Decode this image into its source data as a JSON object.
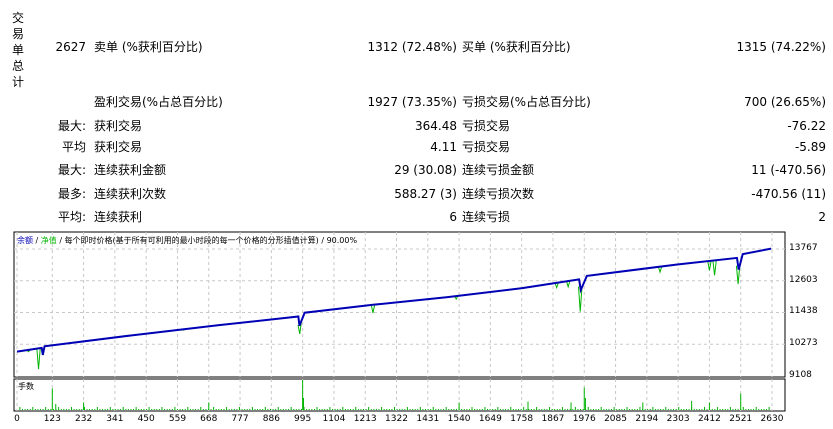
{
  "summary": {
    "vertical_label": "交易单总计",
    "rows": [
      {
        "c1": "2627",
        "c2": "卖单 (%获利百分比)",
        "c3": "1312 (72.48%)",
        "c4": "买单 (%获利百分比)",
        "c5": "1315 (74.22%)"
      },
      {
        "c1": "",
        "c2": "盈利交易(%占总百分比)",
        "c3": "1927 (73.35%)",
        "c4": "亏损交易(%占总百分比)",
        "c5": "700 (26.65%)"
      },
      {
        "c1": "最大:",
        "c2": "获利交易",
        "c3": "364.48",
        "c4": "亏损交易",
        "c5": "-76.22"
      },
      {
        "c1": "平均",
        "c2": "获利交易",
        "c3": "4.11",
        "c4": "亏损交易",
        "c5": "-5.89"
      },
      {
        "c1": "最大:",
        "c2": "连续获利金额",
        "c3": "29 (30.08)",
        "c4": "连续亏损金额",
        "c5": "11 (-470.56)"
      },
      {
        "c1": "最多:",
        "c2": "连续获利次数",
        "c3": "588.27 (3)",
        "c4": "连续亏损次数",
        "c5": "-470.56 (11)"
      },
      {
        "c1": "平均:",
        "c2": "连续获利",
        "c3": "6",
        "c4": "连续亏损",
        "c5": "2"
      }
    ]
  },
  "chart_data": {
    "type": "line",
    "legend": {
      "balance": "余额",
      "sep1": " / ",
      "equity": "净值",
      "rest": " / 每个即时价格(基于所有可利用的最小时段的每一个价格的分形插值计算) / 90.00%"
    },
    "colors": {
      "balance": "#0000b4",
      "equity": "#00b400",
      "volume": "#00b400",
      "grid": "#c8c8c8"
    },
    "ylim": [
      9108,
      13767
    ],
    "yticks": [
      13767,
      12603,
      11438,
      10273,
      9108
    ],
    "xticks": [
      0,
      123,
      232,
      341,
      450,
      559,
      668,
      777,
      886,
      995,
      1104,
      1213,
      1322,
      1431,
      1540,
      1649,
      1758,
      1867,
      1976,
      2085,
      2194,
      2303,
      2412,
      2521,
      2630
    ],
    "xlim": [
      0,
      2630
    ],
    "series": [
      {
        "key": "balance",
        "points": [
          [
            0,
            10003
          ],
          [
            86,
            10140
          ],
          [
            90,
            9880
          ],
          [
            96,
            10200
          ],
          [
            400,
            10600
          ],
          [
            700,
            10970
          ],
          [
            980,
            11290
          ],
          [
            984,
            10950
          ],
          [
            1002,
            11430
          ],
          [
            1240,
            11720
          ],
          [
            1500,
            12000
          ],
          [
            1760,
            12330
          ],
          [
            1958,
            12650
          ],
          [
            1964,
            12260
          ],
          [
            1985,
            12780
          ],
          [
            2300,
            13200
          ],
          [
            2508,
            13440
          ],
          [
            2514,
            13010
          ],
          [
            2528,
            13580
          ],
          [
            2627,
            13780
          ]
        ]
      },
      {
        "key": "equity_dips",
        "points": [
          [
            40,
            10000
          ],
          [
            75,
            9360
          ],
          [
            110,
            10230
          ],
          [
            560,
            10800
          ],
          [
            580,
            10790
          ],
          [
            985,
            10650
          ],
          [
            1240,
            11420
          ],
          [
            1530,
            11930
          ],
          [
            1880,
            12350
          ],
          [
            1920,
            12380
          ],
          [
            1962,
            11470
          ],
          [
            2240,
            12920
          ],
          [
            2412,
            12980
          ],
          [
            2430,
            12800
          ],
          [
            2512,
            12480
          ]
        ]
      }
    ],
    "volume": {
      "label": "手数",
      "bars": [
        [
          123,
          0.72
        ],
        [
          135,
          0.2
        ],
        [
          232,
          0.25
        ],
        [
          668,
          0.25
        ],
        [
          995,
          1.0
        ],
        [
          998,
          0.4
        ],
        [
          1540,
          0.25
        ],
        [
          1780,
          0.28
        ],
        [
          1930,
          0.25
        ],
        [
          1976,
          0.75
        ],
        [
          1980,
          0.4
        ],
        [
          2180,
          0.25
        ],
        [
          2350,
          0.3
        ],
        [
          2412,
          0.25
        ],
        [
          2521,
          0.55
        ]
      ]
    }
  }
}
